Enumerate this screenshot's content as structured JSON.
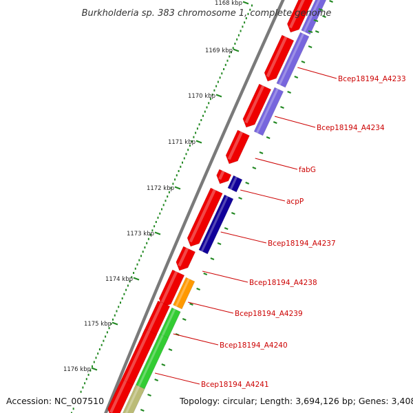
{
  "title": "Burkholderia sp. 383 chromosome 1, complete genome",
  "footer": {
    "accession": "Accession: NC_007510",
    "summary": "Topology: circular; Length: 3,694,126 bp; Genes: 3,408"
  },
  "colors": {
    "cds": "#ee0000",
    "blast_light": "#7766dd",
    "blast_dark": "#110099",
    "orange": "#ff9900",
    "green": "#33cc33",
    "olive": "#bbbb77",
    "backbone": "#7a7a7a",
    "ticks": "#228822",
    "labels": "#cc0000"
  },
  "ticks": [
    {
      "label": "1168 kbp"
    },
    {
      "label": "1169 kbp"
    },
    {
      "label": "1170 kbp"
    },
    {
      "label": "1171 kbp"
    },
    {
      "label": "1172 kbp"
    },
    {
      "label": "1173 kbp"
    },
    {
      "label": "1174 kbp"
    },
    {
      "label": "1175 kbp"
    },
    {
      "label": "1176 kbp"
    }
  ],
  "genes": [
    {
      "name": ""
    },
    {
      "name": "Bcep18194_A4233"
    },
    {
      "name": "Bcep18194_A4234"
    },
    {
      "name": "fabG"
    },
    {
      "name": "acpP"
    },
    {
      "name": "Bcep18194_A4237"
    },
    {
      "name": "Bcep18194_A4238"
    },
    {
      "name": "Bcep18194_A4239"
    },
    {
      "name": "Bcep18194_A4240"
    },
    {
      "name": "Bcep18194_A4241"
    },
    {
      "name": ""
    }
  ]
}
